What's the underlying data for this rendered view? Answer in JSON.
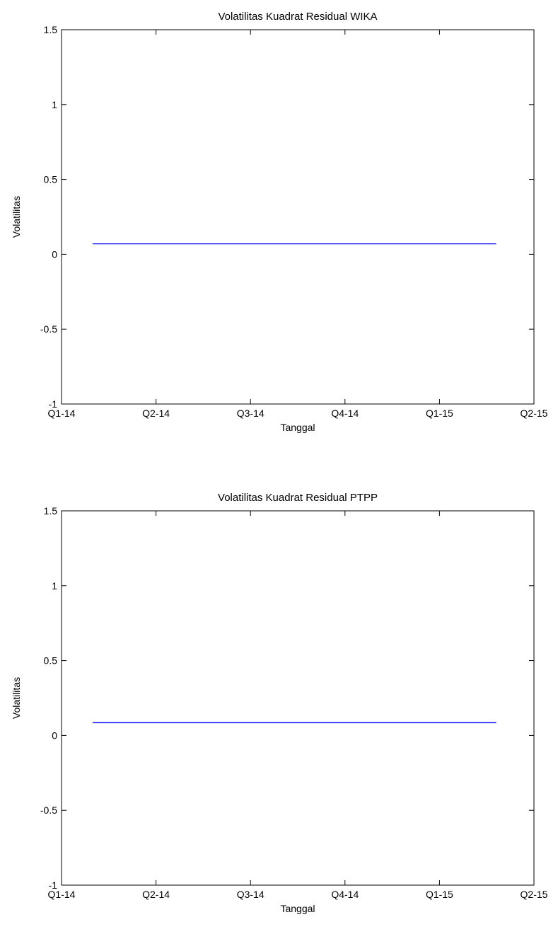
{
  "chart_data": [
    {
      "type": "line",
      "title": "Volatilitas Kuadrat Residual WIKA",
      "xlabel": "Tanggal",
      "ylabel": "Volatilitas",
      "xticks": [
        "Q1-14",
        "Q2-14",
        "Q3-14",
        "Q4-14",
        "Q1-15",
        "Q2-15"
      ],
      "yticks": [
        "-1",
        "-0.5",
        "0",
        "0.5",
        "1",
        "1.5"
      ],
      "ylim": [
        -1,
        1.5
      ],
      "grid": false,
      "series": [
        {
          "color": "#0000ff",
          "x_quarter_start": 0.33,
          "x_quarter_end": 4.6,
          "values": [
            0.07,
            0.07
          ]
        }
      ]
    },
    {
      "type": "line",
      "title": "Volatilitas Kuadrat Residual PTPP",
      "xlabel": "Tanggal",
      "ylabel": "Volatilitas",
      "xticks": [
        "Q1-14",
        "Q2-14",
        "Q3-14",
        "Q4-14",
        "Q1-15",
        "Q2-15"
      ],
      "yticks": [
        "-1",
        "-0.5",
        "0",
        "0.5",
        "1",
        "1.5"
      ],
      "ylim": [
        -1,
        1.5
      ],
      "grid": false,
      "series": [
        {
          "color": "#0000ff",
          "x_quarter_start": 0.33,
          "x_quarter_end": 4.6,
          "values": [
            0.085,
            0.085
          ]
        }
      ]
    }
  ]
}
